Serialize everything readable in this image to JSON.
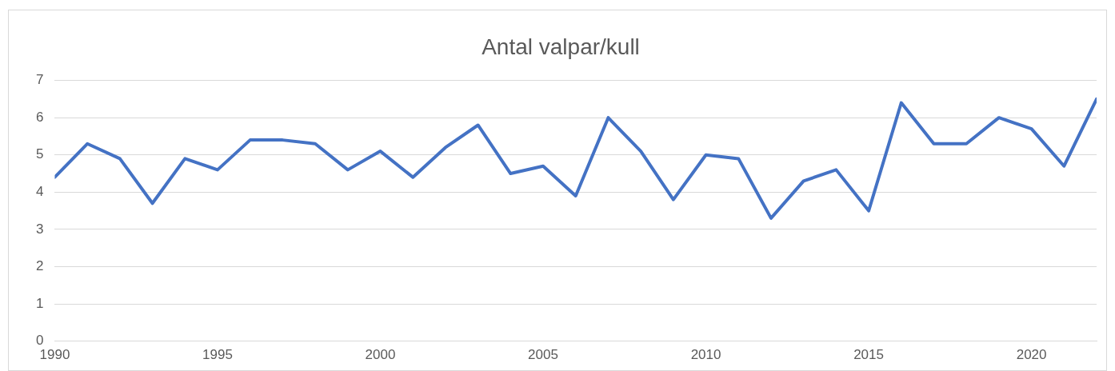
{
  "chart_data": {
    "type": "line",
    "title": "Antal valpar/kull",
    "x": [
      1990,
      1991,
      1992,
      1993,
      1994,
      1995,
      1996,
      1997,
      1998,
      1999,
      2000,
      2001,
      2002,
      2003,
      2004,
      2005,
      2006,
      2007,
      2008,
      2009,
      2010,
      2011,
      2012,
      2013,
      2014,
      2015,
      2016,
      2017,
      2018,
      2019,
      2020,
      2021,
      2022
    ],
    "series": [
      {
        "color": "#4472c4",
        "values": [
          4.4,
          5.3,
          4.9,
          3.7,
          4.9,
          4.6,
          5.4,
          5.4,
          5.3,
          4.6,
          5.1,
          4.4,
          5.2,
          5.8,
          4.5,
          4.7,
          3.9,
          6.0,
          5.1,
          3.8,
          5.0,
          4.9,
          3.3,
          4.3,
          4.6,
          3.5,
          6.4,
          5.3,
          5.3,
          6.0,
          5.7,
          4.7,
          6.5
        ]
      }
    ],
    "xlim": [
      1990,
      2022
    ],
    "xticks": [
      1990,
      1995,
      2000,
      2005,
      2010,
      2015,
      2020
    ],
    "ylim": [
      0,
      7
    ],
    "yticks": [
      0,
      1,
      2,
      3,
      4,
      5,
      6,
      7
    ],
    "grid": "y",
    "legend": false,
    "marker": "none",
    "line_style": "solid"
  }
}
